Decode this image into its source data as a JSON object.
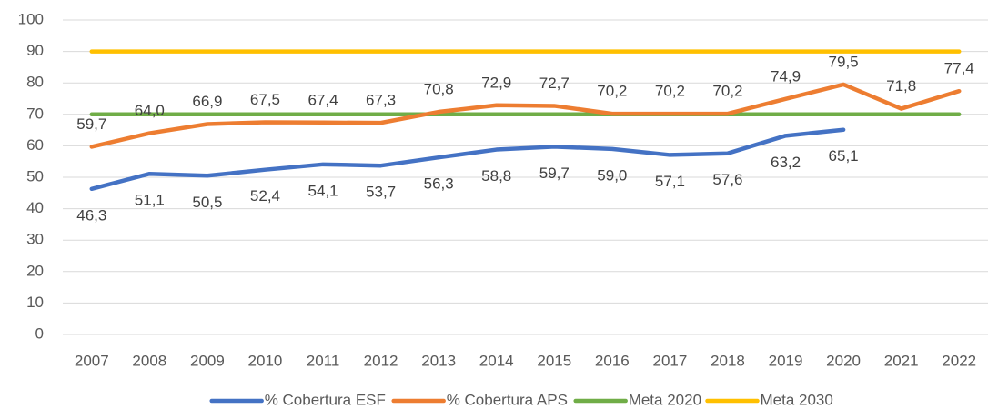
{
  "chart_data": {
    "type": "line",
    "categories": [
      "2007",
      "2008",
      "2009",
      "2010",
      "2011",
      "2012",
      "2013",
      "2014",
      "2015",
      "2016",
      "2017",
      "2018",
      "2019",
      "2020",
      "2021",
      "2022"
    ],
    "series": [
      {
        "name": "% Cobertura ESF",
        "color": "#4472c4",
        "values": [
          46.3,
          51.1,
          50.5,
          52.4,
          54.1,
          53.7,
          56.3,
          58.8,
          59.7,
          59.0,
          57.1,
          57.6,
          63.2,
          65.1,
          null,
          null
        ],
        "value_labels": [
          "46,3",
          "51,1",
          "50,5",
          "52,4",
          "54,1",
          "53,7",
          "56,3",
          "58,8",
          "59,7",
          "59,0",
          "57,1",
          "57,6",
          "63,2",
          "65,1",
          null,
          null
        ]
      },
      {
        "name": "% Cobertura APS",
        "color": "#ed7d31",
        "values": [
          59.7,
          64.0,
          66.9,
          67.5,
          67.4,
          67.3,
          70.8,
          72.9,
          72.7,
          70.2,
          70.2,
          70.2,
          74.9,
          79.5,
          71.8,
          77.4
        ],
        "value_labels": [
          "59,7",
          "64,0",
          "66,9",
          "67,5",
          "67,4",
          "67,3",
          "70,8",
          "72,9",
          "72,7",
          "70,2",
          "70,2",
          "70,2",
          "74,9",
          "79,5",
          "71,8",
          "77,4"
        ]
      },
      {
        "name": "Meta 2020",
        "color": "#70ad47",
        "values": [
          70,
          70,
          70,
          70,
          70,
          70,
          70,
          70,
          70,
          70,
          70,
          70,
          70,
          70,
          70,
          70
        ]
      },
      {
        "name": "Meta 2030",
        "color": "#ffc000",
        "values": [
          90,
          90,
          90,
          90,
          90,
          90,
          90,
          90,
          90,
          90,
          90,
          90,
          90,
          90,
          90,
          90
        ]
      }
    ],
    "ylim": [
      0,
      100
    ],
    "yticks": [
      0,
      10,
      20,
      30,
      40,
      50,
      60,
      70,
      80,
      90,
      100
    ],
    "grid": true,
    "legend": "bottom"
  }
}
